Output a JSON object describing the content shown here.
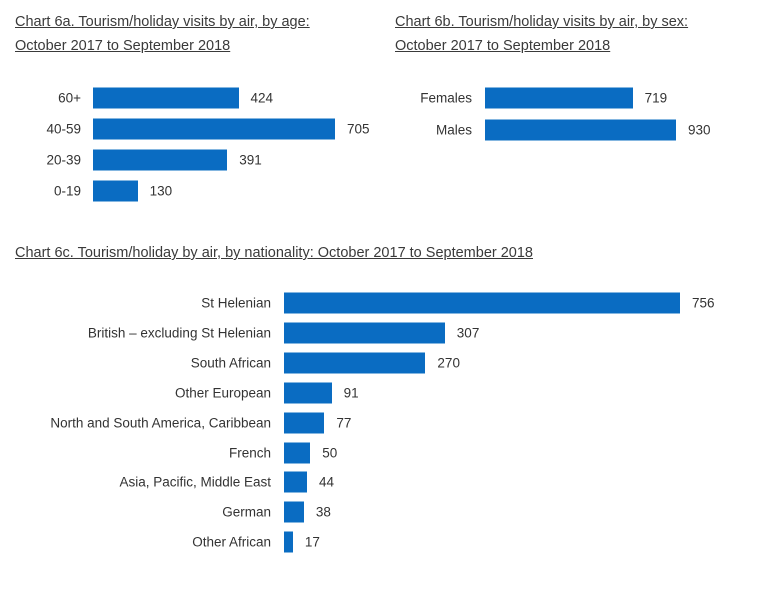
{
  "chart_data": [
    {
      "type": "bar",
      "orientation": "horizontal",
      "title_line1": "Chart 6a. Tourism/holiday visits by air, by age:",
      "title_line2": "October 2017 to September 2018",
      "categories": [
        "60+",
        "40-59",
        "20-39",
        "0-19"
      ],
      "values": [
        424,
        705,
        391,
        130
      ],
      "color": "#0a6cc2"
    },
    {
      "type": "bar",
      "orientation": "horizontal",
      "title_line1": "Chart 6b. Tourism/holiday visits by air, by sex:",
      "title_line2": "October 2017 to September 2018",
      "categories": [
        "Females",
        "Males"
      ],
      "values": [
        719,
        930
      ],
      "color": "#0a6cc2"
    },
    {
      "type": "bar",
      "orientation": "horizontal",
      "title_line1": "Chart 6c. Tourism/holiday by air, by nationality: October 2017 to September 2018",
      "categories": [
        "St Helenian",
        "British – excluding St Helenian",
        "South African",
        "Other European",
        "North and South America, Caribbean",
        "French",
        "Asia, Pacific, Middle East",
        "German",
        "Other African"
      ],
      "values": [
        756,
        307,
        270,
        91,
        77,
        50,
        44,
        38,
        17
      ],
      "color": "#0a6cc2"
    }
  ]
}
